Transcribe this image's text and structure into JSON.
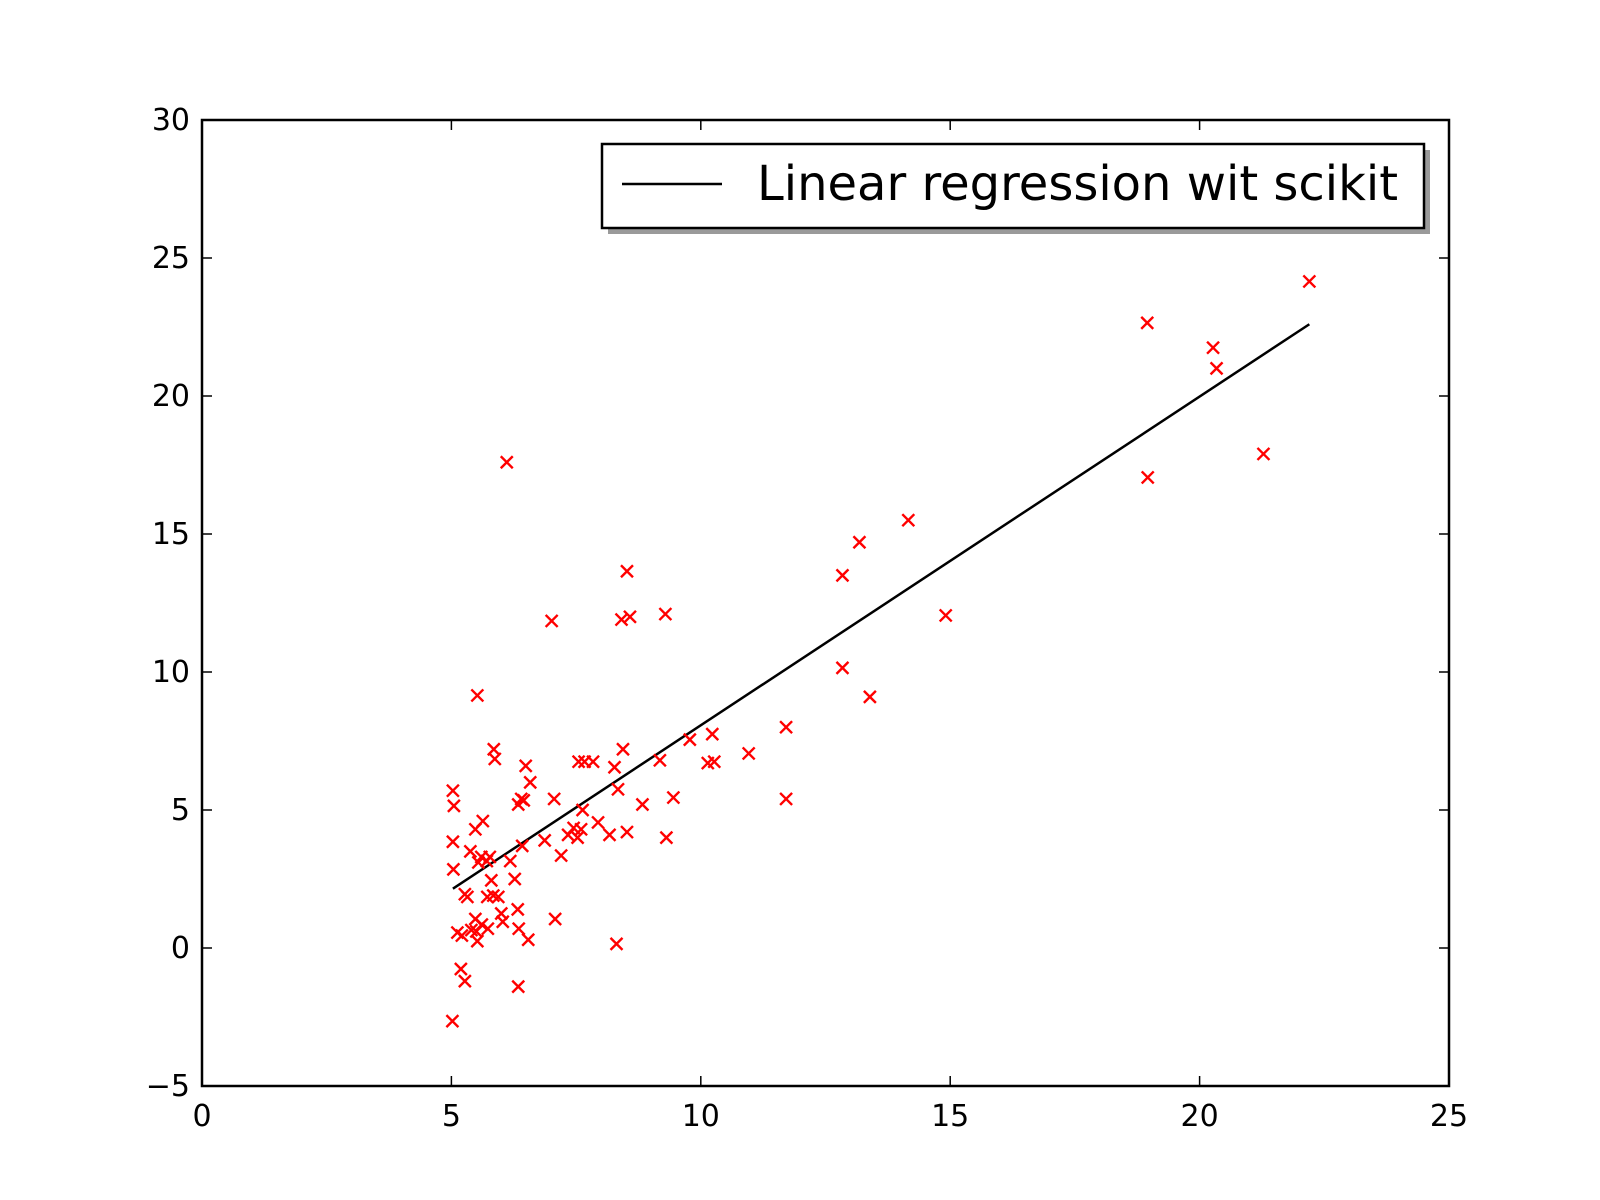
{
  "chart_data": {
    "type": "scatter",
    "title": "",
    "xlabel": "",
    "ylabel": "",
    "xlim": [
      0,
      25
    ],
    "ylim": [
      -5,
      30
    ],
    "x_ticks": [
      0,
      5,
      10,
      15,
      20,
      25
    ],
    "x_tick_labels": [
      "0",
      "5",
      "10",
      "15",
      "20",
      "25"
    ],
    "y_ticks": [
      -5,
      0,
      5,
      10,
      15,
      20,
      25,
      30
    ],
    "y_tick_labels": [
      "−5",
      "0",
      "5",
      "10",
      "15",
      "20",
      "25",
      "30"
    ],
    "grid": false,
    "legend": {
      "placement": "top-right",
      "entries": [
        "Linear regression wit scikit"
      ]
    },
    "series": [
      {
        "kind": "scatter",
        "marker": "x",
        "color": "#ff0000",
        "points": [
          [
            5.03,
            5.7
          ],
          [
            5.05,
            5.15
          ],
          [
            5.03,
            3.85
          ],
          [
            5.04,
            2.85
          ],
          [
            5.02,
            -2.65
          ],
          [
            5.12,
            0.56
          ],
          [
            5.19,
            -0.76
          ],
          [
            5.21,
            0.45
          ],
          [
            5.27,
            1.95
          ],
          [
            5.27,
            -1.2
          ],
          [
            5.32,
            1.85
          ],
          [
            5.38,
            3.5
          ],
          [
            5.4,
            0.65
          ],
          [
            5.48,
            4.3
          ],
          [
            5.48,
            1.05
          ],
          [
            5.5,
            0.6
          ],
          [
            5.52,
            9.15
          ],
          [
            5.52,
            0.25
          ],
          [
            5.54,
            3.1
          ],
          [
            5.6,
            3.3
          ],
          [
            5.61,
            0.85
          ],
          [
            5.63,
            4.6
          ],
          [
            5.71,
            3.15
          ],
          [
            5.72,
            1.85
          ],
          [
            5.73,
            0.7
          ],
          [
            5.77,
            3.3
          ],
          [
            5.8,
            2.45
          ],
          [
            5.84,
            1.9
          ],
          [
            5.85,
            7.2
          ],
          [
            5.87,
            6.85
          ],
          [
            5.94,
            1.85
          ],
          [
            6.0,
            1.25
          ],
          [
            6.03,
            0.95
          ],
          [
            6.11,
            17.6
          ],
          [
            6.18,
            3.15
          ],
          [
            6.27,
            2.5
          ],
          [
            6.33,
            1.4
          ],
          [
            6.34,
            5.2
          ],
          [
            6.34,
            -1.4
          ],
          [
            6.35,
            0.7
          ],
          [
            6.4,
            5.4
          ],
          [
            6.42,
            3.7
          ],
          [
            6.45,
            5.35
          ],
          [
            6.49,
            6.6
          ],
          [
            6.54,
            0.3
          ],
          [
            6.58,
            6.0
          ],
          [
            6.87,
            3.9
          ],
          [
            7.01,
            11.85
          ],
          [
            7.06,
            5.4
          ],
          [
            7.08,
            1.05
          ],
          [
            7.2,
            3.35
          ],
          [
            7.34,
            4.1
          ],
          [
            7.45,
            4.35
          ],
          [
            7.53,
            4.0
          ],
          [
            7.55,
            6.75
          ],
          [
            7.6,
            4.3
          ],
          [
            7.63,
            5.0
          ],
          [
            7.67,
            6.75
          ],
          [
            7.84,
            6.75
          ],
          [
            7.94,
            4.55
          ],
          [
            8.17,
            4.1
          ],
          [
            8.27,
            6.55
          ],
          [
            8.34,
            5.75
          ],
          [
            8.31,
            0.15
          ],
          [
            8.41,
            11.9
          ],
          [
            8.44,
            7.2
          ],
          [
            8.52,
            4.2
          ],
          [
            8.52,
            13.65
          ],
          [
            8.58,
            12.0
          ],
          [
            8.83,
            5.2
          ],
          [
            9.18,
            6.8
          ],
          [
            9.29,
            12.1
          ],
          [
            9.31,
            4.0
          ],
          [
            9.45,
            5.45
          ],
          [
            9.78,
            7.55
          ],
          [
            10.14,
            6.7
          ],
          [
            10.23,
            7.75
          ],
          [
            10.27,
            6.75
          ],
          [
            10.96,
            7.05
          ],
          [
            11.71,
            8.0
          ],
          [
            11.71,
            5.4
          ],
          [
            12.84,
            13.5
          ],
          [
            12.84,
            10.15
          ],
          [
            13.18,
            14.7
          ],
          [
            13.39,
            9.1
          ],
          [
            14.16,
            15.5
          ],
          [
            14.91,
            12.05
          ],
          [
            18.95,
            22.65
          ],
          [
            18.96,
            17.05
          ],
          [
            20.27,
            21.75
          ],
          [
            20.34,
            21.0
          ],
          [
            21.28,
            17.9
          ],
          [
            22.2,
            24.15
          ]
        ]
      },
      {
        "kind": "line",
        "name": "Linear regression wit scikit",
        "color": "#000000",
        "points": [
          [
            5.03,
            2.15
          ],
          [
            22.2,
            22.6
          ]
        ]
      }
    ]
  }
}
